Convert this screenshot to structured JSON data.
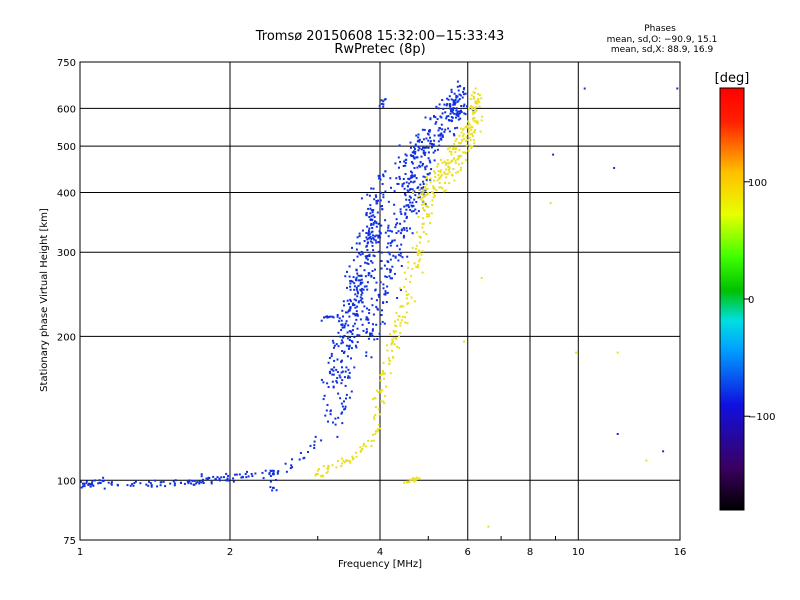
{
  "chart_data": {
    "type": "scatter",
    "title": "Tromsø 20150608 15:32:00−15:33:43",
    "subtitle": "RwPretec (8p)",
    "xlabel": "Frequency [MHz]",
    "ylabel": "Stationary phase Virtual Height [km]",
    "xscale": "log",
    "yscale": "log",
    "xlim": [
      1,
      16
    ],
    "ylim": [
      75,
      750
    ],
    "xticks": [
      1,
      2,
      4,
      6,
      8,
      10,
      16
    ],
    "xtick_labels": [
      "1",
      "2",
      "4",
      "6",
      "8",
      "10",
      "16"
    ],
    "yticks": [
      75,
      100,
      200,
      300,
      400,
      500,
      600,
      750
    ],
    "ytick_labels": [
      "75",
      "100",
      "200",
      "300",
      "400",
      "500",
      "600",
      "750"
    ],
    "grid": true,
    "colorbar": {
      "label": "[deg]",
      "range": [
        -180,
        180
      ],
      "ticks": [
        -100,
        0,
        100
      ],
      "tick_labels": [
        "−100",
        "0",
        "100"
      ],
      "colormap": "rainbow"
    },
    "stats": {
      "heading": "Phases",
      "line_o": "mean, sd,O: −90.9, 15.1",
      "line_x": "mean, sd,X: 88.9, 16.9"
    },
    "series": [
      {
        "mode": "O",
        "phase_mean": -90.9,
        "phase_sd": 15.1,
        "color": "#1030e0",
        "segments": [
          {
            "x": [
              1.0,
              1.1,
              1.2,
              1.4,
              1.6,
              1.75,
              1.9,
              2.1,
              2.3,
              2.5
            ],
            "y": [
              98,
              99,
              98,
              98,
              99,
              100,
              101,
              102,
              103,
              104
            ],
            "n": 130,
            "spread": [
              0.01,
              0.02
            ]
          },
          {
            "x": [
              2.4,
              2.5
            ],
            "y": [
              95,
              105
            ],
            "n": 12,
            "spread": [
              0.02,
              0.04
            ]
          },
          {
            "x": [
              2.6,
              2.9,
              3.2,
              3.5
            ],
            "y": [
              105,
              118,
              135,
              150
            ],
            "n": 25,
            "spread": [
              0.03,
              0.05
            ]
          },
          {
            "x": [
              3.05,
              3.3
            ],
            "y": [
              218,
              222
            ],
            "n": 10,
            "spread": [
              0.01,
              0.01
            ]
          },
          {
            "x": [
              3.2,
              3.5,
              3.8,
              4.0
            ],
            "y": [
              150,
              220,
              300,
              390
            ],
            "n": 380,
            "spread": [
              0.05,
              0.2
            ]
          },
          {
            "x": [
              3.8,
              4.2,
              4.6,
              5.0
            ],
            "y": [
              200,
              280,
              380,
              470
            ],
            "n": 200,
            "spread": [
              0.04,
              0.15
            ]
          },
          {
            "x": [
              4.4,
              4.9,
              5.5,
              5.8
            ],
            "y": [
              420,
              500,
              580,
              640
            ],
            "n": 240,
            "spread": [
              0.05,
              0.1
            ]
          },
          {
            "x": [
              4.0,
              4.1
            ],
            "y": [
              600,
              630
            ],
            "n": 8,
            "spread": [
              0.01,
              0.02
            ]
          },
          {
            "x": [
              8.9,
              10.3,
              11.8,
              12.0,
              14.8,
              15.8
            ],
            "y": [
              480,
              660,
              450,
              125,
              115,
              660
            ],
            "n": 6,
            "spread": [
              0,
              0
            ]
          }
        ]
      },
      {
        "mode": "X",
        "phase_mean": 88.9,
        "phase_sd": 16.9,
        "color": "#e8e020",
        "segments": [
          {
            "x": [
              3.0,
              3.3,
              3.5,
              3.8,
              4.0
            ],
            "y": [
              103,
              108,
              112,
              120,
              130
            ],
            "n": 60,
            "spread": [
              0.02,
              0.02
            ]
          },
          {
            "x": [
              3.9,
              4.2,
              4.5,
              4.8,
              5.0
            ],
            "y": [
              140,
              180,
              240,
              300,
              380
            ],
            "n": 140,
            "spread": [
              0.03,
              0.08
            ]
          },
          {
            "x": [
              4.8,
              5.3,
              5.7,
              6.1,
              6.3
            ],
            "y": [
              380,
              430,
              470,
              540,
              640
            ],
            "n": 220,
            "spread": [
              0.03,
              0.08
            ]
          },
          {
            "x": [
              4.5,
              4.8
            ],
            "y": [
              99,
              101
            ],
            "n": 20,
            "spread": [
              0.02,
              0.01
            ]
          },
          {
            "x": [
              5.9,
              6.4,
              6.6,
              8.8,
              9.9,
              12.0,
              13.7
            ],
            "y": [
              195,
              265,
              80,
              380,
              185,
              185,
              110
            ],
            "n": 7,
            "spread": [
              0,
              0
            ]
          }
        ]
      }
    ]
  }
}
